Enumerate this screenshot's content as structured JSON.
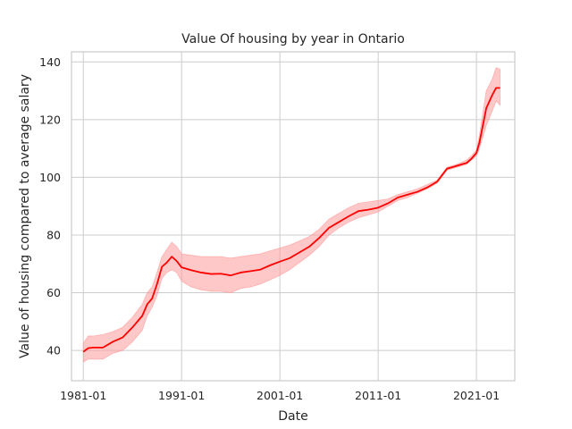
{
  "chart_data": {
    "type": "line",
    "title": "Value Of housing by year in Ontario",
    "xlabel": "Date",
    "ylabel": "Value of housing compared to average salary",
    "x_tick_labels": [
      "1981-01",
      "1991-01",
      "2001-01",
      "2011-01",
      "2021-01"
    ],
    "y_tick_labels": [
      "40",
      "60",
      "80",
      "100",
      "120",
      "140"
    ],
    "x_ticks": [
      1981,
      1991,
      2001,
      2011,
      2021
    ],
    "y_ticks": [
      40,
      60,
      80,
      100,
      120,
      140
    ],
    "xlim": [
      1979.8,
      2024.9
    ],
    "ylim": [
      29.5,
      143.5
    ],
    "grid": true,
    "line_color": "#ff0000",
    "band_color": "#ff9a9a",
    "series": [
      {
        "x": [
          1981.0,
          1981.5,
          1982,
          1983,
          1984,
          1985,
          1986,
          1987,
          1987.5,
          1988,
          1988.5,
          1989,
          1989.5,
          1990,
          1990.5,
          1991,
          1992,
          1993,
          1994,
          1995,
          1996,
          1997,
          1998,
          1999,
          2000,
          2001,
          2002,
          2003,
          2004,
          2005,
          2006,
          2007,
          2008,
          2009,
          2010,
          2011,
          2012,
          2013,
          2014,
          2015,
          2016,
          2017,
          2018,
          2019,
          2020,
          2020.5,
          2021,
          2021.3,
          2022,
          2022.6,
          2023,
          2023.4
        ],
        "y": [
          39.5,
          40.8,
          41.0,
          41.0,
          43.0,
          44.5,
          48.0,
          52.0,
          56.0,
          58.0,
          63.0,
          69.0,
          70.5,
          72.5,
          71.0,
          68.8,
          67.8,
          67.0,
          66.5,
          66.6,
          66.0,
          67.0,
          67.5,
          68.0,
          69.5,
          70.8,
          72.0,
          74.0,
          76.0,
          79.0,
          82.5,
          84.5,
          86.5,
          88.3,
          88.8,
          89.5,
          91.0,
          93.0,
          94.0,
          95.0,
          96.5,
          98.5,
          103.0,
          104.0,
          105.0,
          106.5,
          108.5,
          112.0,
          124.0,
          128.5,
          131.0,
          131.0
        ],
        "lower": [
          36.0,
          37.0,
          37.0,
          37.0,
          39.0,
          40.0,
          43.0,
          47.0,
          52.0,
          55.0,
          59.0,
          65.0,
          67.0,
          68.0,
          67.0,
          64.0,
          62.0,
          61.0,
          60.5,
          60.5,
          60.0,
          61.5,
          62.0,
          63.0,
          64.5,
          66.0,
          68.0,
          70.5,
          73.0,
          76.0,
          80.0,
          82.5,
          84.5,
          86.0,
          87.0,
          88.0,
          90.0,
          92.0,
          93.0,
          94.5,
          96.0,
          98.0,
          102.5,
          103.5,
          104.5,
          106.0,
          107.5,
          110.0,
          118.0,
          123.0,
          126.5,
          125.0
        ],
        "upper": [
          42.5,
          45.0,
          45.0,
          45.5,
          46.5,
          48.0,
          51.5,
          56.0,
          60.0,
          62.0,
          67.0,
          72.5,
          75.0,
          77.5,
          76.0,
          73.5,
          73.0,
          72.5,
          72.5,
          72.5,
          72.0,
          72.5,
          73.0,
          73.5,
          74.5,
          75.5,
          76.5,
          78.0,
          79.5,
          82.0,
          85.5,
          87.5,
          89.5,
          91.0,
          91.5,
          92.0,
          92.5,
          94.0,
          95.0,
          96.0,
          97.5,
          99.0,
          103.5,
          104.5,
          106.0,
          107.5,
          109.5,
          114.5,
          130.0,
          134.0,
          138.0,
          137.5
        ]
      }
    ]
  }
}
